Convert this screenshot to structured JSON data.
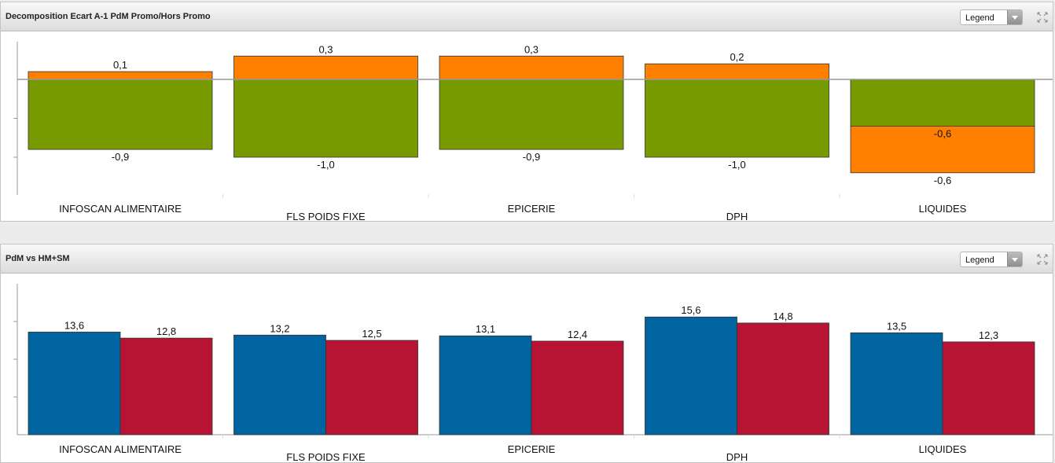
{
  "panels": [
    {
      "title": "Decomposition Ecart A-1 PdM Promo/Hors Promo",
      "legend_label": "Legend"
    },
    {
      "title": "PdM vs HM+SM",
      "legend_label": "Legend"
    }
  ],
  "colors": {
    "orange": "#ff7f00",
    "green": "#769a00",
    "blue": "#0064a0",
    "red": "#b71434"
  },
  "chart_data": [
    {
      "type": "bar",
      "stacked": true,
      "categories": [
        "INFOSCAN ALIMENTAIRE",
        "FLS POIDS FIXE",
        "EPICERIE",
        "DPH",
        "LIQUIDES"
      ],
      "series": [
        {
          "color": "green",
          "values": [
            -0.9,
            -1.0,
            -0.9,
            -1.0,
            -0.6
          ],
          "labels": [
            "-0,9",
            "-1,0",
            "-0,9",
            "-1,0",
            "-0,6"
          ]
        },
        {
          "color": "orange",
          "values": [
            0.1,
            0.3,
            0.3,
            0.2,
            -0.6
          ],
          "labels": [
            "0,1",
            "0,3",
            "0,3",
            "0,2",
            "-0,6"
          ]
        }
      ],
      "ylim": [
        -1.3,
        0.45
      ],
      "grid": false
    },
    {
      "type": "bar",
      "categories": [
        "INFOSCAN ALIMENTAIRE",
        "FLS POIDS FIXE",
        "EPICERIE",
        "DPH",
        "LIQUIDES"
      ],
      "series": [
        {
          "color": "blue",
          "values": [
            13.6,
            13.2,
            13.1,
            15.6,
            13.5
          ],
          "labels": [
            "13,6",
            "13,2",
            "13,1",
            "15,6",
            "13,5"
          ]
        },
        {
          "color": "red",
          "values": [
            12.8,
            12.5,
            12.4,
            14.8,
            12.3
          ],
          "labels": [
            "12,8",
            "12,5",
            "12,4",
            "14,8",
            "12,3"
          ]
        }
      ],
      "ylim": [
        0,
        20
      ],
      "grid": false
    }
  ]
}
